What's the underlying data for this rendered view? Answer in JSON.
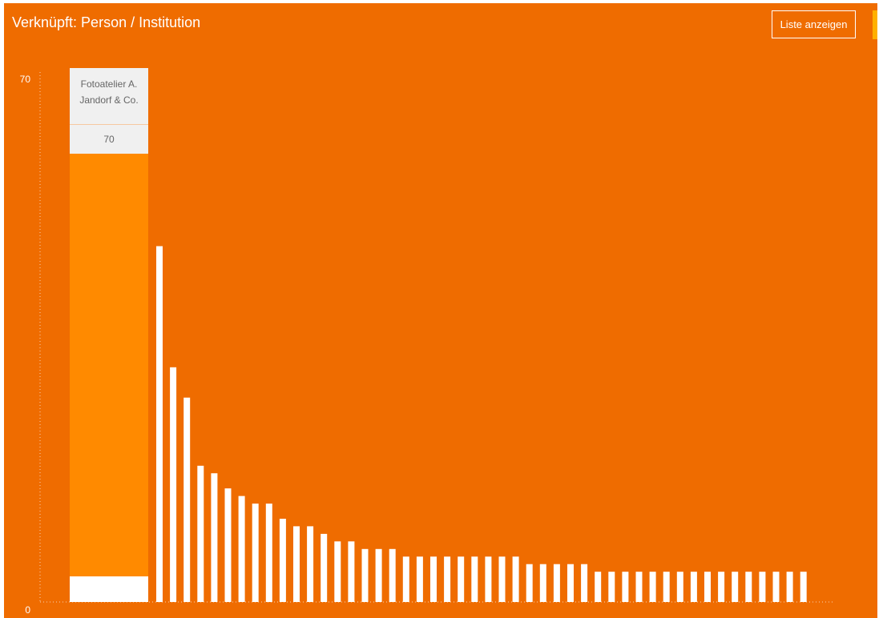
{
  "header": {
    "title": "Verknüpft: Person / Institution",
    "list_button": "Liste anzeigen"
  },
  "y_axis": {
    "max_label": "70",
    "min_label": "0"
  },
  "colors": {
    "background": "#ef6c00",
    "bar": "#ffffff",
    "highlight": "#ff8a00",
    "tooltip": "#f0f0f0",
    "tooltip_text": "#666666",
    "side_accent": "#ffb000"
  },
  "tooltip": {
    "label": "Fotoatelier A. Jandorf & Co.",
    "value": "70"
  },
  "chart_data": {
    "type": "bar",
    "title": "Verknüpft: Person / Institution",
    "xlabel": "",
    "ylabel": "",
    "ylim": [
      0,
      70
    ],
    "grid": false,
    "legend": "none",
    "highlighted_index": 0,
    "values": [
      70,
      47,
      31,
      27,
      18,
      17,
      15,
      14,
      13,
      13,
      11,
      10,
      10,
      9,
      8,
      8,
      7,
      7,
      7,
      6,
      6,
      6,
      6,
      6,
      6,
      6,
      6,
      6,
      5,
      5,
      5,
      5,
      5,
      4,
      4,
      4,
      4,
      4,
      4,
      4,
      4,
      4,
      4,
      4,
      4,
      4,
      4,
      4,
      4
    ]
  }
}
